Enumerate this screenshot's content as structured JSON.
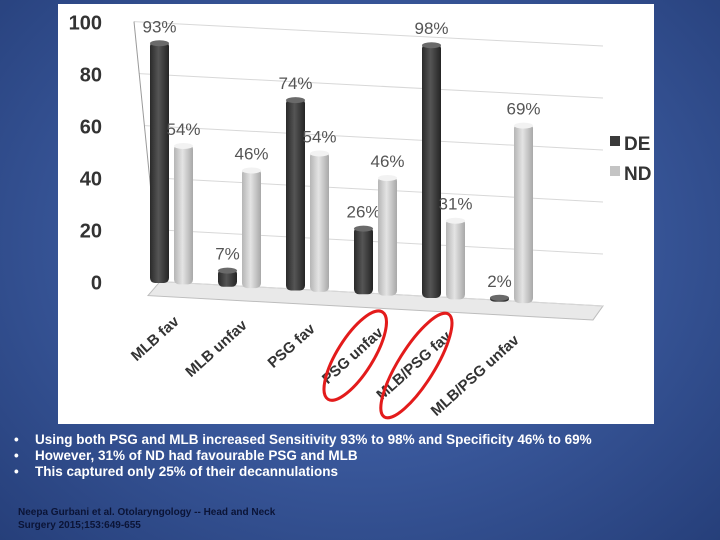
{
  "chart_data": {
    "type": "bar",
    "categories": [
      "MLB fav",
      "MLB unfav",
      "PSG fav",
      "PSG unfav",
      "MLB/PSG fav",
      "MLB/PSG unfav"
    ],
    "series": [
      {
        "name": "DE",
        "values": [
          93,
          7,
          74,
          26,
          98,
          2
        ],
        "color": "#3a3a3a"
      },
      {
        "name": "ND",
        "values": [
          54,
          46,
          54,
          46,
          31,
          69
        ],
        "color": "#c4c4c4"
      }
    ],
    "data_labels": [
      [
        "93%",
        "7%",
        "74%",
        "26%",
        "98%",
        "2%"
      ],
      [
        "54%",
        "46%",
        "54%",
        "46%",
        "31%",
        "69%"
      ]
    ],
    "yticks": [
      "100",
      "80",
      "60",
      "40",
      "20",
      "0"
    ],
    "ylim": [
      0,
      100
    ],
    "legend_position": "right",
    "highlighted_categories": [
      "PSG unfav",
      "MLB/PSG fav"
    ],
    "highlight_color": "#e31b1b",
    "legend": [
      "DE",
      "ND"
    ]
  },
  "bullets": [
    "Using both PSG and MLB increased Sensitivity 93% to 98% and Specificity 46% to 69%",
    "However, 31% of ND had favourable PSG and MLB",
    "This captured only 25% of their decannulations"
  ],
  "bullet_symbol": "•",
  "citation": {
    "line1": "Neepa Gurbani et al. Otolaryngology -- Head and Neck",
    "line2": "Surgery 2015;153:649-655"
  }
}
